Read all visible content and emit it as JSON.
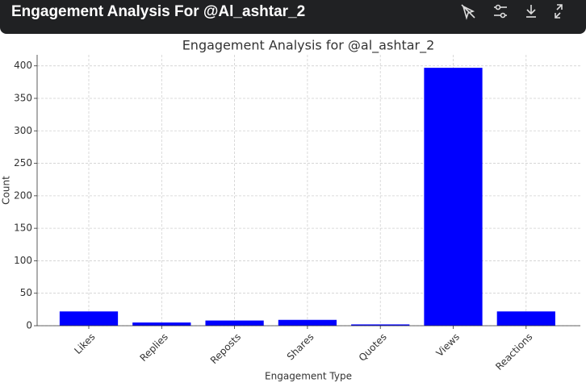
{
  "header": {
    "title": "Engagement Analysis For @Al_ashtar_2"
  },
  "chart_data": {
    "type": "bar",
    "title": "Engagement Analysis for @al_ashtar_2",
    "x_label": "Engagement Type",
    "y_label": "Count",
    "categories": [
      "Likes",
      "Replies",
      "Reposts",
      "Shares",
      "Quotes",
      "Views",
      "Reactions"
    ],
    "values": [
      22,
      5,
      8,
      9,
      2,
      397,
      22
    ],
    "color": "#0000ff",
    "ylim": [
      0,
      417
    ],
    "yticks": [
      0,
      50,
      100,
      150,
      200,
      250,
      300,
      350,
      400
    ],
    "grid": true
  }
}
